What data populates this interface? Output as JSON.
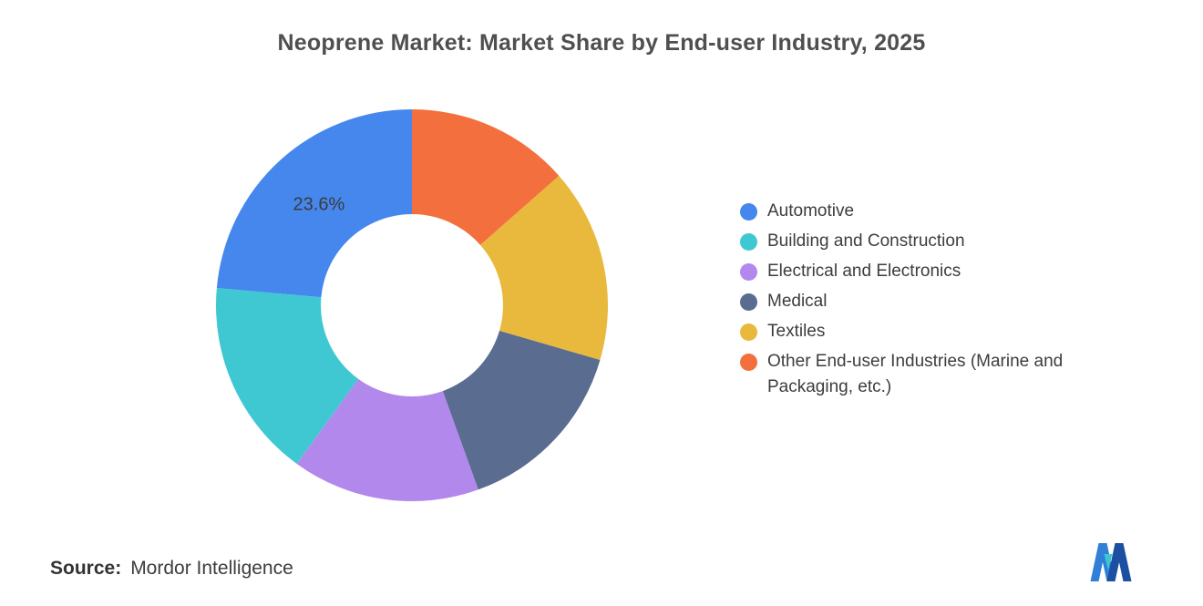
{
  "title": "Neoprene Market: Market Share by End-user Industry, 2025",
  "chart_data": {
    "type": "pie",
    "subtype": "donut",
    "title": "Neoprene Market: Market Share by End-user Industry, 2025",
    "labels": [
      "Automotive",
      "Building and Construction",
      "Electrical and Electronics",
      "Medical",
      "Textiles",
      "Other End-user Industries (Marine and Packaging, etc.)"
    ],
    "values": [
      23.6,
      16.4,
      15.5,
      15.0,
      16.0,
      13.5
    ],
    "colors": [
      "#4587EC",
      "#3FC8D2",
      "#B388ED",
      "#5A6C8F",
      "#E9B93D",
      "#F3703E"
    ],
    "data_labels": [
      "23.6%",
      "",
      "",
      "",
      "",
      ""
    ],
    "start_angle": "top",
    "direction": "counterclockwise",
    "inner_radius_ratio": 0.465,
    "legend_position": "right"
  },
  "source": {
    "label": "Source:",
    "value": "Mordor Intelligence"
  },
  "logo": {
    "name": "mordor-intelligence-logo",
    "colors": {
      "light_blue": "#2F80D6",
      "dark_blue": "#1C4FA1",
      "teal": "#3EC6D0"
    }
  }
}
